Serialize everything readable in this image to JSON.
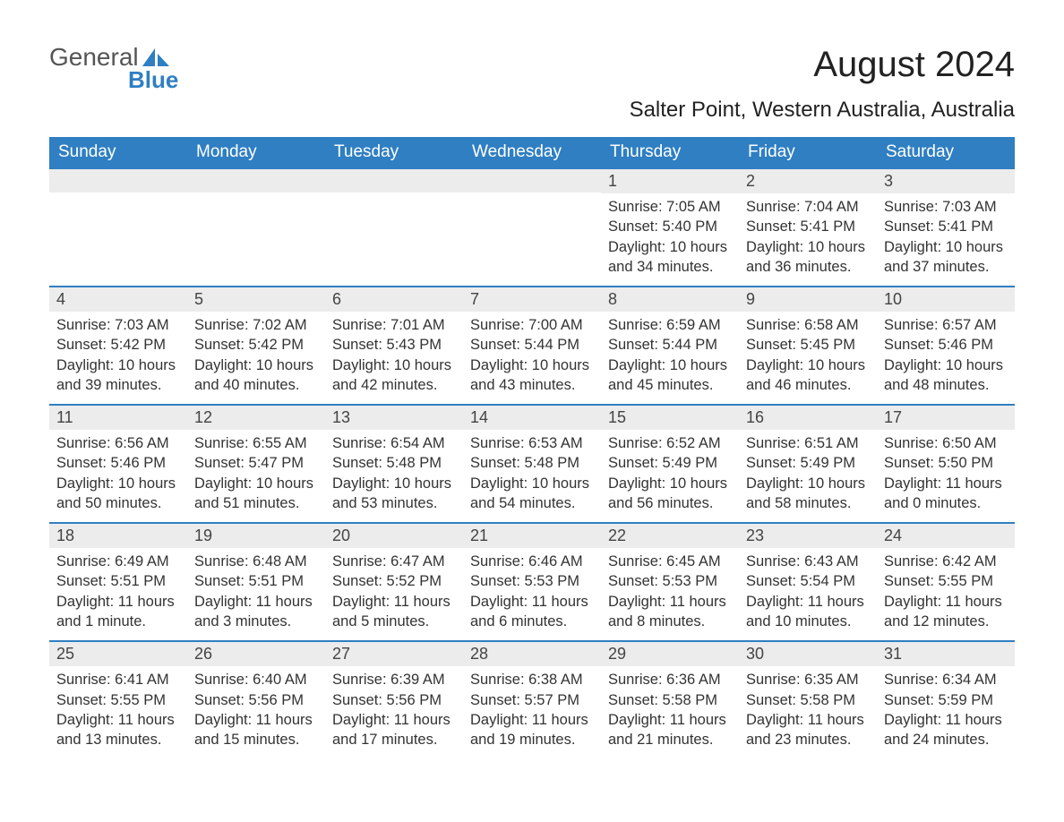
{
  "logo": {
    "text_general": "General",
    "text_blue": "Blue"
  },
  "header": {
    "month_title": "August 2024",
    "location": "Salter Point, Western Australia, Australia"
  },
  "colors": {
    "header_bg": "#2f7fc2",
    "header_text": "#ffffff",
    "daynum_bg": "#ececec",
    "cell_border": "#2f7fc2",
    "body_text": "#333333",
    "logo_gray": "#555555",
    "logo_blue": "#2f7fc2",
    "page_bg": "#ffffff"
  },
  "typography": {
    "month_title_fontsize": 40,
    "location_fontsize": 24,
    "dow_fontsize": 19,
    "daynum_fontsize": 18,
    "info_fontsize": 16.5,
    "font_family": "Arial"
  },
  "labels": {
    "sunrise": "Sunrise:",
    "sunset": "Sunset:",
    "daylight": "Daylight:"
  },
  "days_of_week": [
    "Sunday",
    "Monday",
    "Tuesday",
    "Wednesday",
    "Thursday",
    "Friday",
    "Saturday"
  ],
  "grid": {
    "leading_blanks": 4,
    "rows": 5,
    "cols": 7
  },
  "days": [
    {
      "n": 1,
      "sunrise": "7:05 AM",
      "sunset": "5:40 PM",
      "daylight": "10 hours and 34 minutes."
    },
    {
      "n": 2,
      "sunrise": "7:04 AM",
      "sunset": "5:41 PM",
      "daylight": "10 hours and 36 minutes."
    },
    {
      "n": 3,
      "sunrise": "7:03 AM",
      "sunset": "5:41 PM",
      "daylight": "10 hours and 37 minutes."
    },
    {
      "n": 4,
      "sunrise": "7:03 AM",
      "sunset": "5:42 PM",
      "daylight": "10 hours and 39 minutes."
    },
    {
      "n": 5,
      "sunrise": "7:02 AM",
      "sunset": "5:42 PM",
      "daylight": "10 hours and 40 minutes."
    },
    {
      "n": 6,
      "sunrise": "7:01 AM",
      "sunset": "5:43 PM",
      "daylight": "10 hours and 42 minutes."
    },
    {
      "n": 7,
      "sunrise": "7:00 AM",
      "sunset": "5:44 PM",
      "daylight": "10 hours and 43 minutes."
    },
    {
      "n": 8,
      "sunrise": "6:59 AM",
      "sunset": "5:44 PM",
      "daylight": "10 hours and 45 minutes."
    },
    {
      "n": 9,
      "sunrise": "6:58 AM",
      "sunset": "5:45 PM",
      "daylight": "10 hours and 46 minutes."
    },
    {
      "n": 10,
      "sunrise": "6:57 AM",
      "sunset": "5:46 PM",
      "daylight": "10 hours and 48 minutes."
    },
    {
      "n": 11,
      "sunrise": "6:56 AM",
      "sunset": "5:46 PM",
      "daylight": "10 hours and 50 minutes."
    },
    {
      "n": 12,
      "sunrise": "6:55 AM",
      "sunset": "5:47 PM",
      "daylight": "10 hours and 51 minutes."
    },
    {
      "n": 13,
      "sunrise": "6:54 AM",
      "sunset": "5:48 PM",
      "daylight": "10 hours and 53 minutes."
    },
    {
      "n": 14,
      "sunrise": "6:53 AM",
      "sunset": "5:48 PM",
      "daylight": "10 hours and 54 minutes."
    },
    {
      "n": 15,
      "sunrise": "6:52 AM",
      "sunset": "5:49 PM",
      "daylight": "10 hours and 56 minutes."
    },
    {
      "n": 16,
      "sunrise": "6:51 AM",
      "sunset": "5:49 PM",
      "daylight": "10 hours and 58 minutes."
    },
    {
      "n": 17,
      "sunrise": "6:50 AM",
      "sunset": "5:50 PM",
      "daylight": "11 hours and 0 minutes."
    },
    {
      "n": 18,
      "sunrise": "6:49 AM",
      "sunset": "5:51 PM",
      "daylight": "11 hours and 1 minute."
    },
    {
      "n": 19,
      "sunrise": "6:48 AM",
      "sunset": "5:51 PM",
      "daylight": "11 hours and 3 minutes."
    },
    {
      "n": 20,
      "sunrise": "6:47 AM",
      "sunset": "5:52 PM",
      "daylight": "11 hours and 5 minutes."
    },
    {
      "n": 21,
      "sunrise": "6:46 AM",
      "sunset": "5:53 PM",
      "daylight": "11 hours and 6 minutes."
    },
    {
      "n": 22,
      "sunrise": "6:45 AM",
      "sunset": "5:53 PM",
      "daylight": "11 hours and 8 minutes."
    },
    {
      "n": 23,
      "sunrise": "6:43 AM",
      "sunset": "5:54 PM",
      "daylight": "11 hours and 10 minutes."
    },
    {
      "n": 24,
      "sunrise": "6:42 AM",
      "sunset": "5:55 PM",
      "daylight": "11 hours and 12 minutes."
    },
    {
      "n": 25,
      "sunrise": "6:41 AM",
      "sunset": "5:55 PM",
      "daylight": "11 hours and 13 minutes."
    },
    {
      "n": 26,
      "sunrise": "6:40 AM",
      "sunset": "5:56 PM",
      "daylight": "11 hours and 15 minutes."
    },
    {
      "n": 27,
      "sunrise": "6:39 AM",
      "sunset": "5:56 PM",
      "daylight": "11 hours and 17 minutes."
    },
    {
      "n": 28,
      "sunrise": "6:38 AM",
      "sunset": "5:57 PM",
      "daylight": "11 hours and 19 minutes."
    },
    {
      "n": 29,
      "sunrise": "6:36 AM",
      "sunset": "5:58 PM",
      "daylight": "11 hours and 21 minutes."
    },
    {
      "n": 30,
      "sunrise": "6:35 AM",
      "sunset": "5:58 PM",
      "daylight": "11 hours and 23 minutes."
    },
    {
      "n": 31,
      "sunrise": "6:34 AM",
      "sunset": "5:59 PM",
      "daylight": "11 hours and 24 minutes."
    }
  ]
}
